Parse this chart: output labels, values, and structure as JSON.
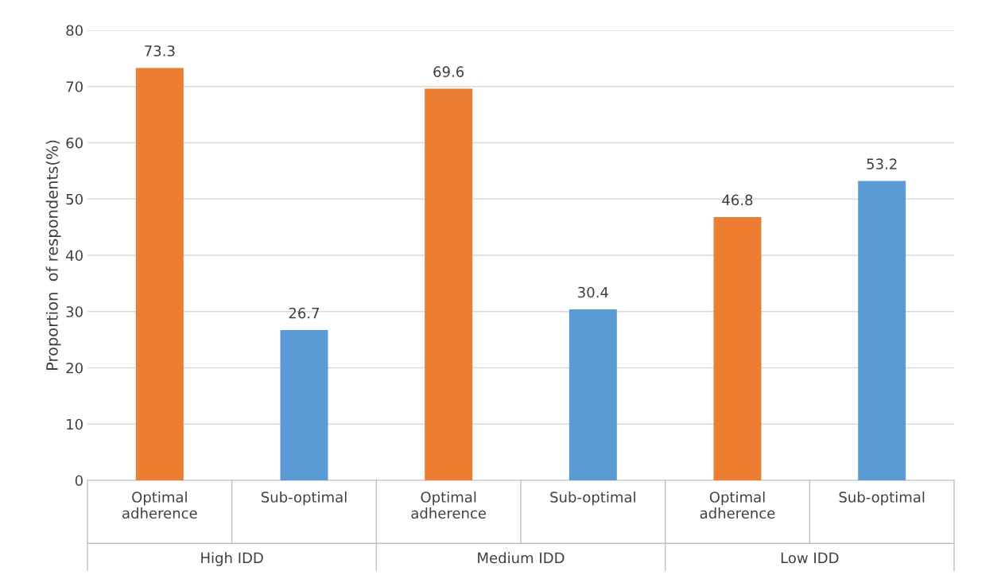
{
  "chart_data": {
    "type": "bar",
    "ylabel": "Proportion  of respondents(%)",
    "categories": [
      "Optimal\nadherence",
      "Sub-optimal",
      "Optimal\nadherence",
      "Sub-optimal",
      "Optimal\nadherence",
      "Sub-optimal"
    ],
    "values": [
      73.3,
      26.7,
      69.6,
      30.4,
      46.8,
      53.2
    ],
    "colors": [
      "#ed7d31",
      "#5b9bd5",
      "#ed7d31",
      "#5b9bd5",
      "#ed7d31",
      "#5b9bd5"
    ],
    "annotations": [
      "High IDD",
      "Medium IDD",
      "Low IDD"
    ],
    "ylim": [
      0,
      80
    ],
    "yticks": [
      0,
      10,
      20,
      30,
      40,
      50,
      60,
      70,
      80
    ],
    "grid": "y",
    "data_labels": true
  }
}
